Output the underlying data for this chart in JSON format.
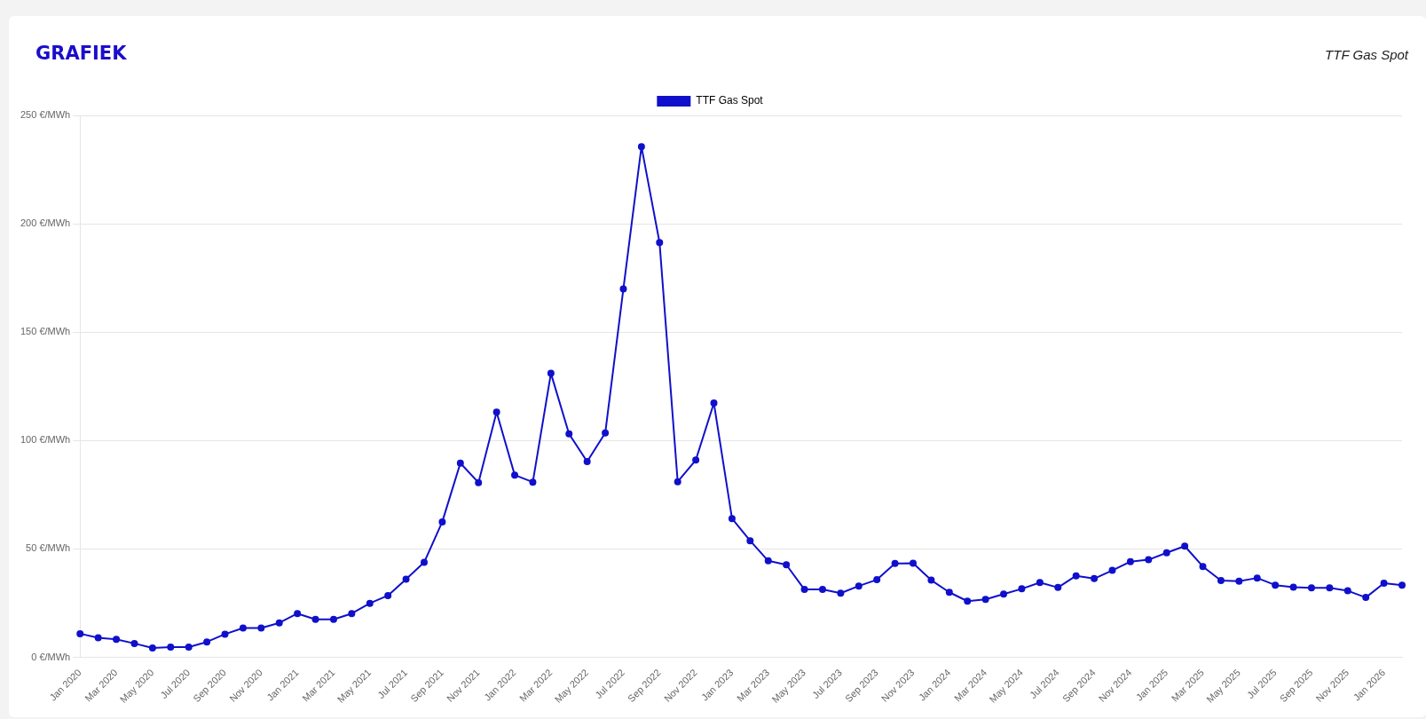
{
  "chart_data": {
    "type": "line",
    "title": "GRAFIEK",
    "subtitle": "TTF Gas Spot",
    "categories": [
      "Jan 2020",
      null,
      "Mar 2020",
      null,
      "May 2020",
      null,
      "Jul 2020",
      null,
      "Sep 2020",
      null,
      "Nov 2020",
      null,
      "Jan 2021",
      null,
      "Mar 2021",
      null,
      "May 2021",
      null,
      "Jul 2021",
      null,
      "Sep 2021",
      null,
      "Nov 2021",
      null,
      "Jan 2022",
      null,
      "Mar 2022",
      null,
      "May 2022",
      null,
      "Jul 2022",
      null,
      "Sep 2022",
      null,
      "Nov 2022",
      null,
      "Jan 2023",
      null,
      "Mar 2023",
      null,
      "May 2023",
      null,
      "Jul 2023",
      null,
      "Sep 2023",
      null,
      "Nov 2023",
      null,
      "Jan 2024",
      null,
      "Mar 2024",
      null,
      "May 2024",
      null,
      "Jul 2024",
      null,
      "Sep 2024",
      null,
      "Nov 2024",
      null,
      "Jan 2025",
      null,
      "Mar 2025",
      null,
      "May 2025",
      null,
      "Jul 2025",
      null,
      "Sep 2025",
      null,
      "Nov 2025",
      null,
      "Jan 2026",
      null
    ],
    "series": [
      {
        "name": "TTF Gas Spot",
        "color": "#1010cc",
        "values": [
          10.9,
          9.0,
          8.3,
          6.4,
          4.3,
          4.7,
          4.7,
          7.1,
          10.7,
          13.5,
          13.5,
          15.9,
          20.2,
          17.5,
          17.5,
          20.2,
          24.9,
          28.5,
          36.0,
          43.8,
          62.5,
          89.6,
          80.6,
          113.1,
          84.1,
          80.8,
          131.0,
          103.1,
          90.3,
          103.5,
          169.9,
          235.6,
          191.3,
          81.0,
          91.0,
          117.3,
          64.0,
          53.8,
          44.5,
          42.7,
          31.3,
          31.3,
          29.6,
          32.9,
          35.8,
          43.3,
          43.4,
          35.6,
          30.0,
          25.9,
          26.7,
          29.2,
          31.6,
          34.5,
          32.2,
          37.6,
          36.3,
          40.1,
          44.1,
          45.0,
          48.2,
          51.3,
          41.9,
          35.4,
          35.1,
          36.6,
          33.3,
          32.4,
          32.0,
          32.0,
          30.7,
          27.6,
          34.2,
          33.3
        ]
      }
    ],
    "ylim": [
      0,
      250
    ],
    "yticks": [
      {
        "value": 0,
        "label": "0 €/MWh"
      },
      {
        "value": 50,
        "label": "50 €/MWh"
      },
      {
        "value": 100,
        "label": "100 €/MWh"
      },
      {
        "value": 150,
        "label": "150 €/MWh"
      },
      {
        "value": 200,
        "label": "200 €/MWh"
      },
      {
        "value": 250,
        "label": "250 €/MWh"
      }
    ],
    "grid": "y",
    "legend": "top",
    "marker": "circle",
    "line_style": "solid"
  }
}
